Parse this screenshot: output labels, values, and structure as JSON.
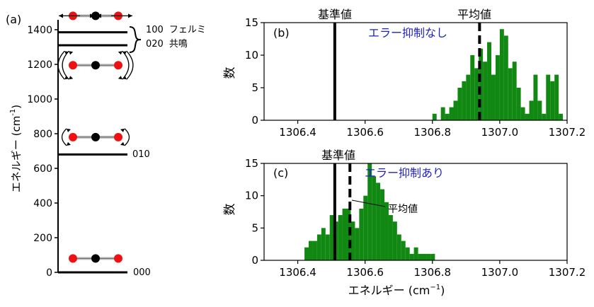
{
  "panel_labels": {
    "a": "(a)",
    "b": "(b)",
    "c": "(c)"
  },
  "colors": {
    "atom_o": "#ee1111",
    "atom_c": "#000000",
    "bond": "#bbbbbb",
    "hist": "#118811",
    "annot_blue": "#1f1fbf"
  },
  "chart_data": [
    {
      "type": "energy-level-diagram",
      "panel": "(a)",
      "ylabel": "エネルギー (cm",
      "ylabel_sup": "-1",
      "ylabel_end": ")",
      "ylim": [
        0,
        1450
      ],
      "yticks": [
        0,
        200,
        400,
        600,
        800,
        1000,
        1200,
        1400
      ],
      "levels": [
        {
          "energy": 0,
          "label": "000"
        },
        {
          "energy": 680,
          "label": "010"
        },
        {
          "energy": 1310,
          "label": "020"
        },
        {
          "energy": 1385,
          "label": "100"
        }
      ],
      "fermi_label": "フェルミ",
      "resonance_label": "共鳴",
      "molecules": [
        {
          "mode": "ground",
          "energy": 80
        },
        {
          "mode": "bend",
          "energy": 780
        },
        {
          "mode": "bend2",
          "energy": 1195
        },
        {
          "mode": "stretch",
          "energy": 1480
        }
      ]
    },
    {
      "type": "bar",
      "panel": "(b)",
      "annotation": "エラー抑制なし",
      "ylabel": "数",
      "xlim": [
        1306.3,
        1307.2
      ],
      "ylim": [
        0,
        15
      ],
      "xticks": [
        1306.4,
        1306.6,
        1306.8,
        1307.0,
        1307.2
      ],
      "yticks": [
        0,
        5,
        10,
        15
      ],
      "bin_start": 1306.8,
      "bin_width": 0.0125,
      "counts": [
        1,
        0,
        2,
        1,
        2,
        3,
        5,
        6,
        7,
        10,
        8,
        11,
        9,
        12,
        7,
        10,
        14,
        13,
        8,
        9,
        5,
        2,
        1,
        3,
        7,
        3,
        1,
        7,
        6,
        7,
        1
      ],
      "reference": {
        "label": "基準値",
        "x": 1306.51
      },
      "mean": {
        "label": "平均値",
        "x": 1306.94
      }
    },
    {
      "type": "bar",
      "panel": "(c)",
      "annotation": "エラー抑制あり",
      "ylabel": "数",
      "xlabel": "エネルギー (cm",
      "xlabel_sup": "−1",
      "xlabel_end": ")",
      "xlim": [
        1306.3,
        1307.2
      ],
      "ylim": [
        0,
        15
      ],
      "xticks": [
        1306.4,
        1306.6,
        1306.8,
        1307.0,
        1307.2
      ],
      "yticks": [
        0,
        5,
        10,
        15
      ],
      "bin_start": 1306.42,
      "bin_width": 0.0125,
      "counts": [
        2,
        3,
        3,
        4,
        5,
        4,
        7,
        6,
        7,
        8,
        8,
        6,
        5,
        8,
        10,
        15,
        13,
        12,
        11,
        9,
        7,
        6,
        4,
        3,
        2,
        1,
        2,
        1,
        1,
        1,
        1,
        0
      ],
      "reference": {
        "label": "基準値",
        "x": 1306.51
      },
      "mean": {
        "label": "平均値",
        "x": 1306.555
      }
    }
  ]
}
